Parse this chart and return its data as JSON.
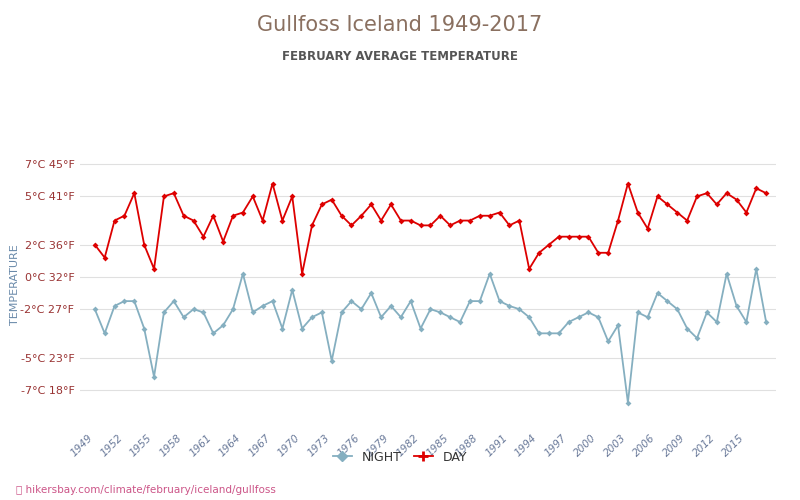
{
  "title": "Gullfoss Iceland 1949-2017",
  "subtitle": "FEBRUARY AVERAGE TEMPERATURE",
  "ylabel": "TEMPERATURE",
  "xlabel_url": "hikersbay.com/climate/february/iceland/gullfoss",
  "legend_night": "NIGHT",
  "legend_day": "DAY",
  "years": [
    1949,
    1950,
    1951,
    1952,
    1953,
    1954,
    1955,
    1956,
    1957,
    1958,
    1959,
    1960,
    1961,
    1962,
    1963,
    1964,
    1965,
    1966,
    1967,
    1968,
    1969,
    1970,
    1971,
    1972,
    1973,
    1974,
    1975,
    1976,
    1977,
    1978,
    1979,
    1980,
    1981,
    1982,
    1983,
    1984,
    1985,
    1986,
    1987,
    1988,
    1989,
    1990,
    1991,
    1992,
    1993,
    1994,
    1995,
    1996,
    1997,
    1998,
    1999,
    2000,
    2001,
    2002,
    2003,
    2004,
    2005,
    2006,
    2007,
    2008,
    2009,
    2010,
    2011,
    2012,
    2013,
    2014,
    2015,
    2016,
    2017
  ],
  "day": [
    2.0,
    1.2,
    3.5,
    3.8,
    5.2,
    2.0,
    0.5,
    5.0,
    5.2,
    3.8,
    3.5,
    2.5,
    3.8,
    2.2,
    3.8,
    4.0,
    5.0,
    3.5,
    5.8,
    3.5,
    5.0,
    0.2,
    3.2,
    4.5,
    4.8,
    3.8,
    3.2,
    3.8,
    4.5,
    3.5,
    4.5,
    3.5,
    3.5,
    3.2,
    3.2,
    3.8,
    3.2,
    3.5,
    3.5,
    3.8,
    3.8,
    4.0,
    3.2,
    3.5,
    0.5,
    1.5,
    2.0,
    2.5,
    2.5,
    2.5,
    2.5,
    1.5,
    1.5,
    3.5,
    5.8,
    4.0,
    3.0,
    5.0,
    4.5,
    4.0,
    3.5,
    5.0,
    5.2,
    4.5,
    5.2,
    4.8,
    4.0,
    5.5,
    5.2
  ],
  "night": [
    -2.0,
    -3.5,
    -1.8,
    -1.5,
    -1.5,
    -3.2,
    -6.2,
    -2.2,
    -1.5,
    -2.5,
    -2.0,
    -2.2,
    -3.5,
    -3.0,
    -2.0,
    0.2,
    -2.2,
    -1.8,
    -1.5,
    -3.2,
    -0.8,
    -3.2,
    -2.5,
    -2.2,
    -5.2,
    -2.2,
    -1.5,
    -2.0,
    -1.0,
    -2.5,
    -1.8,
    -2.5,
    -1.5,
    -3.2,
    -2.0,
    -2.2,
    -2.5,
    -2.8,
    -1.5,
    -1.5,
    0.2,
    -1.5,
    -1.8,
    -2.0,
    -2.5,
    -3.5,
    -3.5,
    -3.5,
    -2.8,
    -2.5,
    -2.2,
    -2.5,
    -4.0,
    -3.0,
    -7.8,
    -2.2,
    -2.5,
    -1.0,
    -1.5,
    -2.0,
    -3.2,
    -3.8,
    -2.2,
    -2.8,
    0.2,
    -1.8,
    -2.8,
    0.5,
    -2.8
  ],
  "yticks_c": [
    7,
    5,
    2,
    0,
    -2,
    -5,
    -7
  ],
  "yticks_f": [
    45,
    41,
    36,
    32,
    27,
    23,
    18
  ],
  "ylim": [
    -9.5,
    8.5
  ],
  "day_color": "#dd0000",
  "night_color": "#85afc0",
  "title_color": "#8a7060",
  "subtitle_color": "#555555",
  "ytick_color": "#993333",
  "xtick_color": "#6a7a9a",
  "ylabel_color": "#6a8aaa",
  "grid_color": "#e0e0e0",
  "url_color": "#cc5588",
  "background_color": "#ffffff"
}
